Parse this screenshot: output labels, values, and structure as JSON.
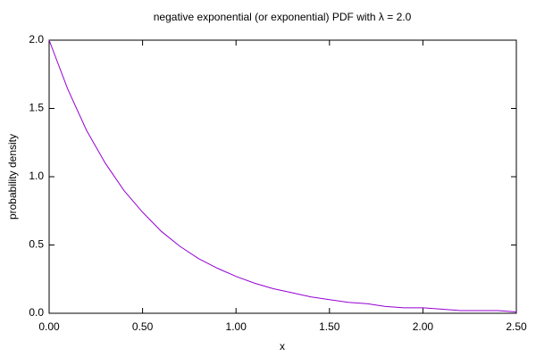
{
  "chart_data": {
    "type": "line",
    "title": "negative exponential (or exponential) PDF with λ = 2.0",
    "xlabel": "x",
    "ylabel": "probability density",
    "x": [
      0,
      0.1,
      0.2,
      0.3,
      0.4,
      0.5,
      0.6,
      0.7,
      0.8,
      0.9,
      1.0,
      1.1,
      1.2,
      1.3,
      1.4,
      1.5,
      1.6,
      1.7,
      1.8,
      1.9,
      2.0,
      2.1,
      2.2,
      2.3,
      2.4,
      2.5
    ],
    "series": [
      {
        "color": "#9400d3",
        "values": [
          2.0,
          1.64,
          1.34,
          1.1,
          0.9,
          0.74,
          0.6,
          0.49,
          0.4,
          0.33,
          0.27,
          0.22,
          0.18,
          0.15,
          0.12,
          0.1,
          0.08,
          0.07,
          0.05,
          0.04,
          0.04,
          0.03,
          0.02,
          0.02,
          0.02,
          0.01
        ]
      }
    ],
    "xlim": [
      0,
      2.5
    ],
    "xticks": [
      {
        "value": 0,
        "label": "0.00"
      },
      {
        "value": 0.5,
        "label": "0.50"
      },
      {
        "value": 1,
        "label": "1.00"
      },
      {
        "value": 1.5,
        "label": "1.50"
      },
      {
        "value": 2,
        "label": "2.00"
      },
      {
        "value": 2.5,
        "label": "2.50"
      }
    ],
    "ylim": [
      0,
      2
    ],
    "yticks": [
      {
        "value": 0,
        "label": "0.0"
      },
      0.5,
      {
        "value": 1,
        "label": "1.0"
      },
      1.5,
      {
        "value": 2,
        "label": "2.0"
      }
    ],
    "grid": false
  }
}
